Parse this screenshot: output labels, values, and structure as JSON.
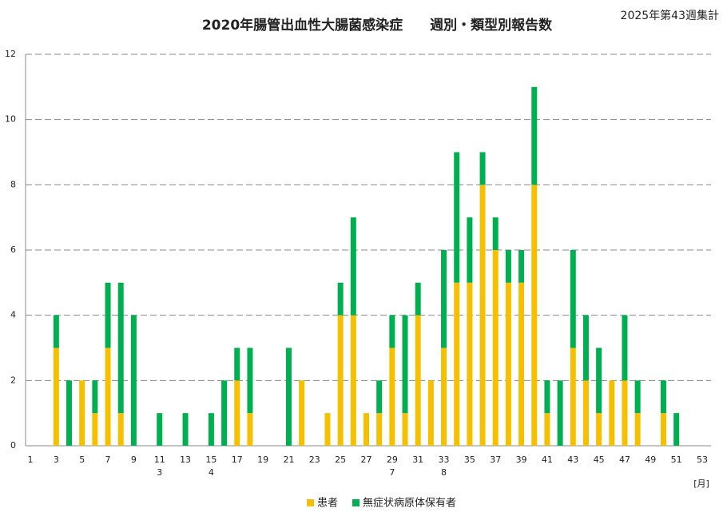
{
  "chart_data": {
    "type": "stacked_bar",
    "title": "2020年腸管出血性大腸菌感染症　　週別・類型別報告数",
    "subtitle": "2025年第43週集計",
    "xlabel": "[月]",
    "categories": [
      "1",
      null,
      "3",
      null,
      "5",
      null,
      "7",
      null,
      "9",
      null,
      "11",
      null,
      "13",
      null,
      "15",
      null,
      "17",
      null,
      "19",
      null,
      "21",
      null,
      "23",
      null,
      "25",
      null,
      "27",
      null,
      "29",
      null,
      "31",
      null,
      "33",
      null,
      "35",
      null,
      "37",
      null,
      "39",
      null,
      "41",
      null,
      "43",
      null,
      "45",
      null,
      "47",
      null,
      "49",
      null,
      "51",
      null,
      "53"
    ],
    "month_labels": [
      null,
      null,
      null,
      null,
      null,
      null,
      null,
      null,
      null,
      null,
      "3",
      null,
      null,
      null,
      "4",
      null,
      null,
      null,
      null,
      null,
      null,
      null,
      null,
      null,
      null,
      null,
      null,
      null,
      "7",
      null,
      null,
      null,
      "8",
      null,
      null,
      null,
      null,
      null,
      null,
      null,
      null,
      null,
      null,
      null,
      null,
      null,
      null,
      null,
      null,
      null,
      null,
      null,
      null
    ],
    "series": [
      {
        "name": "患者",
        "color": "#f5c000",
        "values": [
          0,
          0,
          3,
          0,
          2,
          1,
          3,
          1,
          0,
          0,
          0,
          0,
          0,
          0,
          0,
          0,
          2,
          1,
          0,
          0,
          0,
          2,
          0,
          1,
          4,
          4,
          1,
          1,
          3,
          1,
          4,
          2,
          3,
          5,
          5,
          8,
          6,
          5,
          5,
          8,
          1,
          0,
          3,
          2,
          1,
          2,
          2,
          1,
          0,
          1,
          0,
          0,
          0
        ]
      },
      {
        "name": "無症状病原体保有者",
        "color": "#00b050",
        "values": [
          0,
          0,
          1,
          2,
          0,
          1,
          2,
          4,
          4,
          0,
          1,
          0,
          1,
          0,
          1,
          2,
          1,
          2,
          0,
          0,
          3,
          0,
          0,
          0,
          1,
          3,
          0,
          1,
          1,
          3,
          1,
          0,
          3,
          4,
          2,
          1,
          1,
          1,
          1,
          3,
          1,
          2,
          3,
          2,
          2,
          0,
          2,
          1,
          0,
          1,
          1,
          0,
          0
        ]
      }
    ],
    "ylim": [
      0,
      12
    ],
    "yticks": [
      0,
      2,
      4,
      6,
      8,
      10,
      12
    ],
    "grid": true,
    "legend": "bottom"
  }
}
